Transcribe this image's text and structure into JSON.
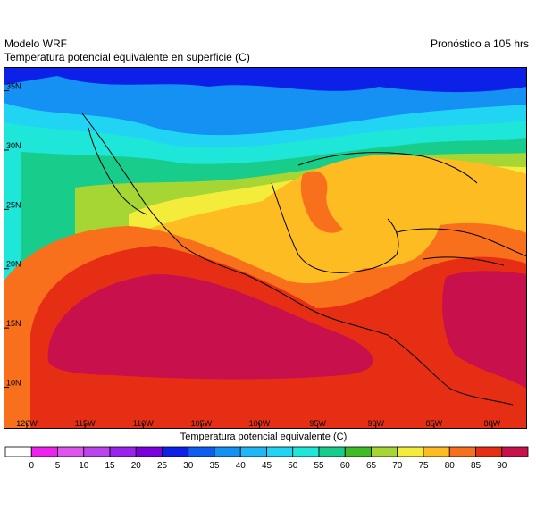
{
  "header": {
    "model": "Modelo WRF",
    "variable": "Temperatura potencial equivalente en superficie (C)",
    "forecast": "Pronóstico a 105 hrs"
  },
  "map": {
    "region": "Mexico, Central America, Gulf of Mexico and Caribbean",
    "lon_range": [
      -122,
      -77
    ],
    "lat_range": [
      6.5,
      37
    ],
    "lat_ticks": [
      {
        "value": 35,
        "label": "35N"
      },
      {
        "value": 30,
        "label": "30N"
      },
      {
        "value": 25,
        "label": "25N"
      },
      {
        "value": 20,
        "label": "20N"
      },
      {
        "value": 15,
        "label": "15N"
      },
      {
        "value": 10,
        "label": "10N"
      }
    ],
    "lon_ticks": [
      {
        "value": -120,
        "label": "120W"
      },
      {
        "value": -115,
        "label": "115W"
      },
      {
        "value": -110,
        "label": "110W"
      },
      {
        "value": -105,
        "label": "105W"
      },
      {
        "value": -100,
        "label": "100W"
      },
      {
        "value": -95,
        "label": "95W"
      },
      {
        "value": -90,
        "label": "90W"
      },
      {
        "value": -85,
        "label": "85W"
      },
      {
        "value": -80,
        "label": "80W"
      }
    ]
  },
  "colorbar": {
    "title": "Temperatura potencial equivalente (C)",
    "levels": [
      "0",
      "5",
      "10",
      "15",
      "20",
      "25",
      "30",
      "35",
      "40",
      "45",
      "50",
      "55",
      "60",
      "65",
      "70",
      "75",
      "80",
      "85",
      "90"
    ],
    "colors": [
      "#ffffff",
      "#ee22ee",
      "#dd55ee",
      "#bb44ee",
      "#9922ee",
      "#7a00dc",
      "#0c20e8",
      "#0e5cf0",
      "#1590f3",
      "#1eb8f8",
      "#22d4f4",
      "#1ee6d8",
      "#18cc8c",
      "#40bb28",
      "#a6d634",
      "#f4ec3a",
      "#fcbc22",
      "#f8701c",
      "#e62e14",
      "#c8104c"
    ]
  }
}
